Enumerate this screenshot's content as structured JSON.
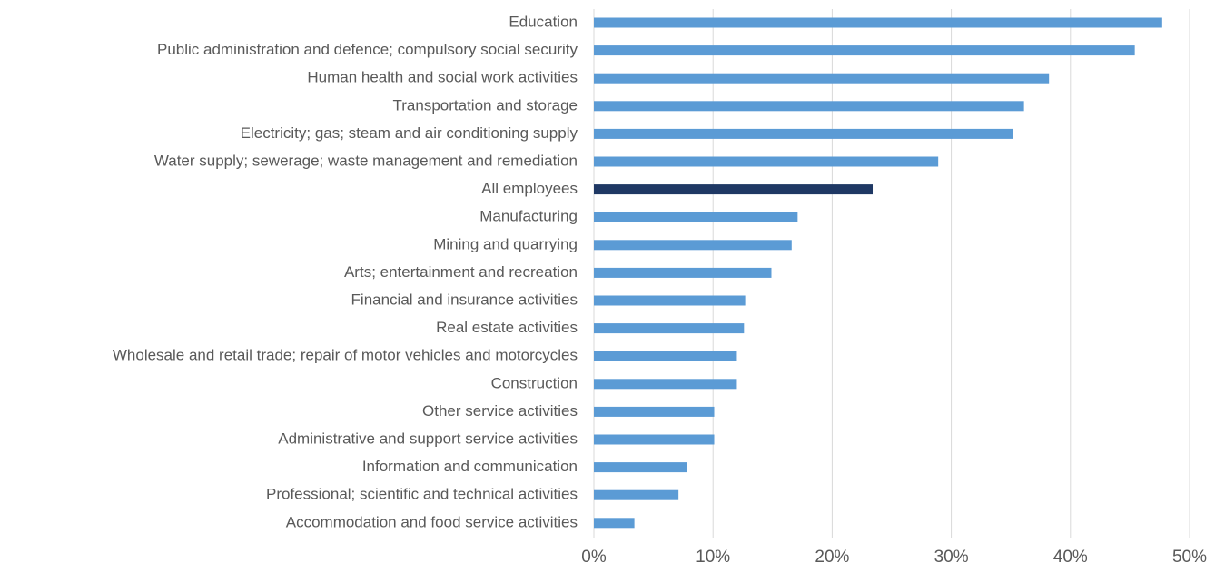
{
  "chart_data": {
    "type": "barh",
    "categories": [
      "Education",
      "Public administration and defence; compulsory social security",
      "Human health and social work activities",
      "Transportation and storage",
      "Electricity; gas; steam and air conditioning supply",
      "Water supply; sewerage; waste management and remediation",
      "All employees",
      "Manufacturing",
      "Mining and quarrying",
      "Arts; entertainment and recreation",
      "Financial and insurance activities",
      "Real estate activities",
      "Wholesale and retail trade; repair of motor vehicles and motorcycles",
      "Construction",
      "Other service activities",
      "Administrative and support service activities",
      "Information and communication",
      "Professional; scientific and technical activities",
      "Accommodation and food service activities"
    ],
    "values": [
      47.7,
      45.4,
      38.2,
      36.1,
      35.2,
      28.9,
      23.4,
      17.1,
      16.6,
      14.9,
      12.7,
      12.6,
      12.0,
      12.0,
      10.1,
      10.1,
      7.8,
      7.1,
      3.4
    ],
    "colors": [
      "#5b9bd5",
      "#5b9bd5",
      "#5b9bd5",
      "#5b9bd5",
      "#5b9bd5",
      "#5b9bd5",
      "#1f3864",
      "#5b9bd5",
      "#5b9bd5",
      "#5b9bd5",
      "#5b9bd5",
      "#5b9bd5",
      "#5b9bd5",
      "#5b9bd5",
      "#5b9bd5",
      "#5b9bd5",
      "#5b9bd5",
      "#5b9bd5",
      "#5b9bd5"
    ],
    "xlim": [
      0,
      50
    ],
    "xticks": [
      {
        "value": 0,
        "label": "0%"
      },
      {
        "value": 10,
        "label": "10%"
      },
      {
        "value": 20,
        "label": "20%"
      },
      {
        "value": 30,
        "label": "30%"
      },
      {
        "value": 40,
        "label": "40%"
      },
      {
        "value": 50,
        "label": "50%"
      }
    ],
    "grid": true
  }
}
